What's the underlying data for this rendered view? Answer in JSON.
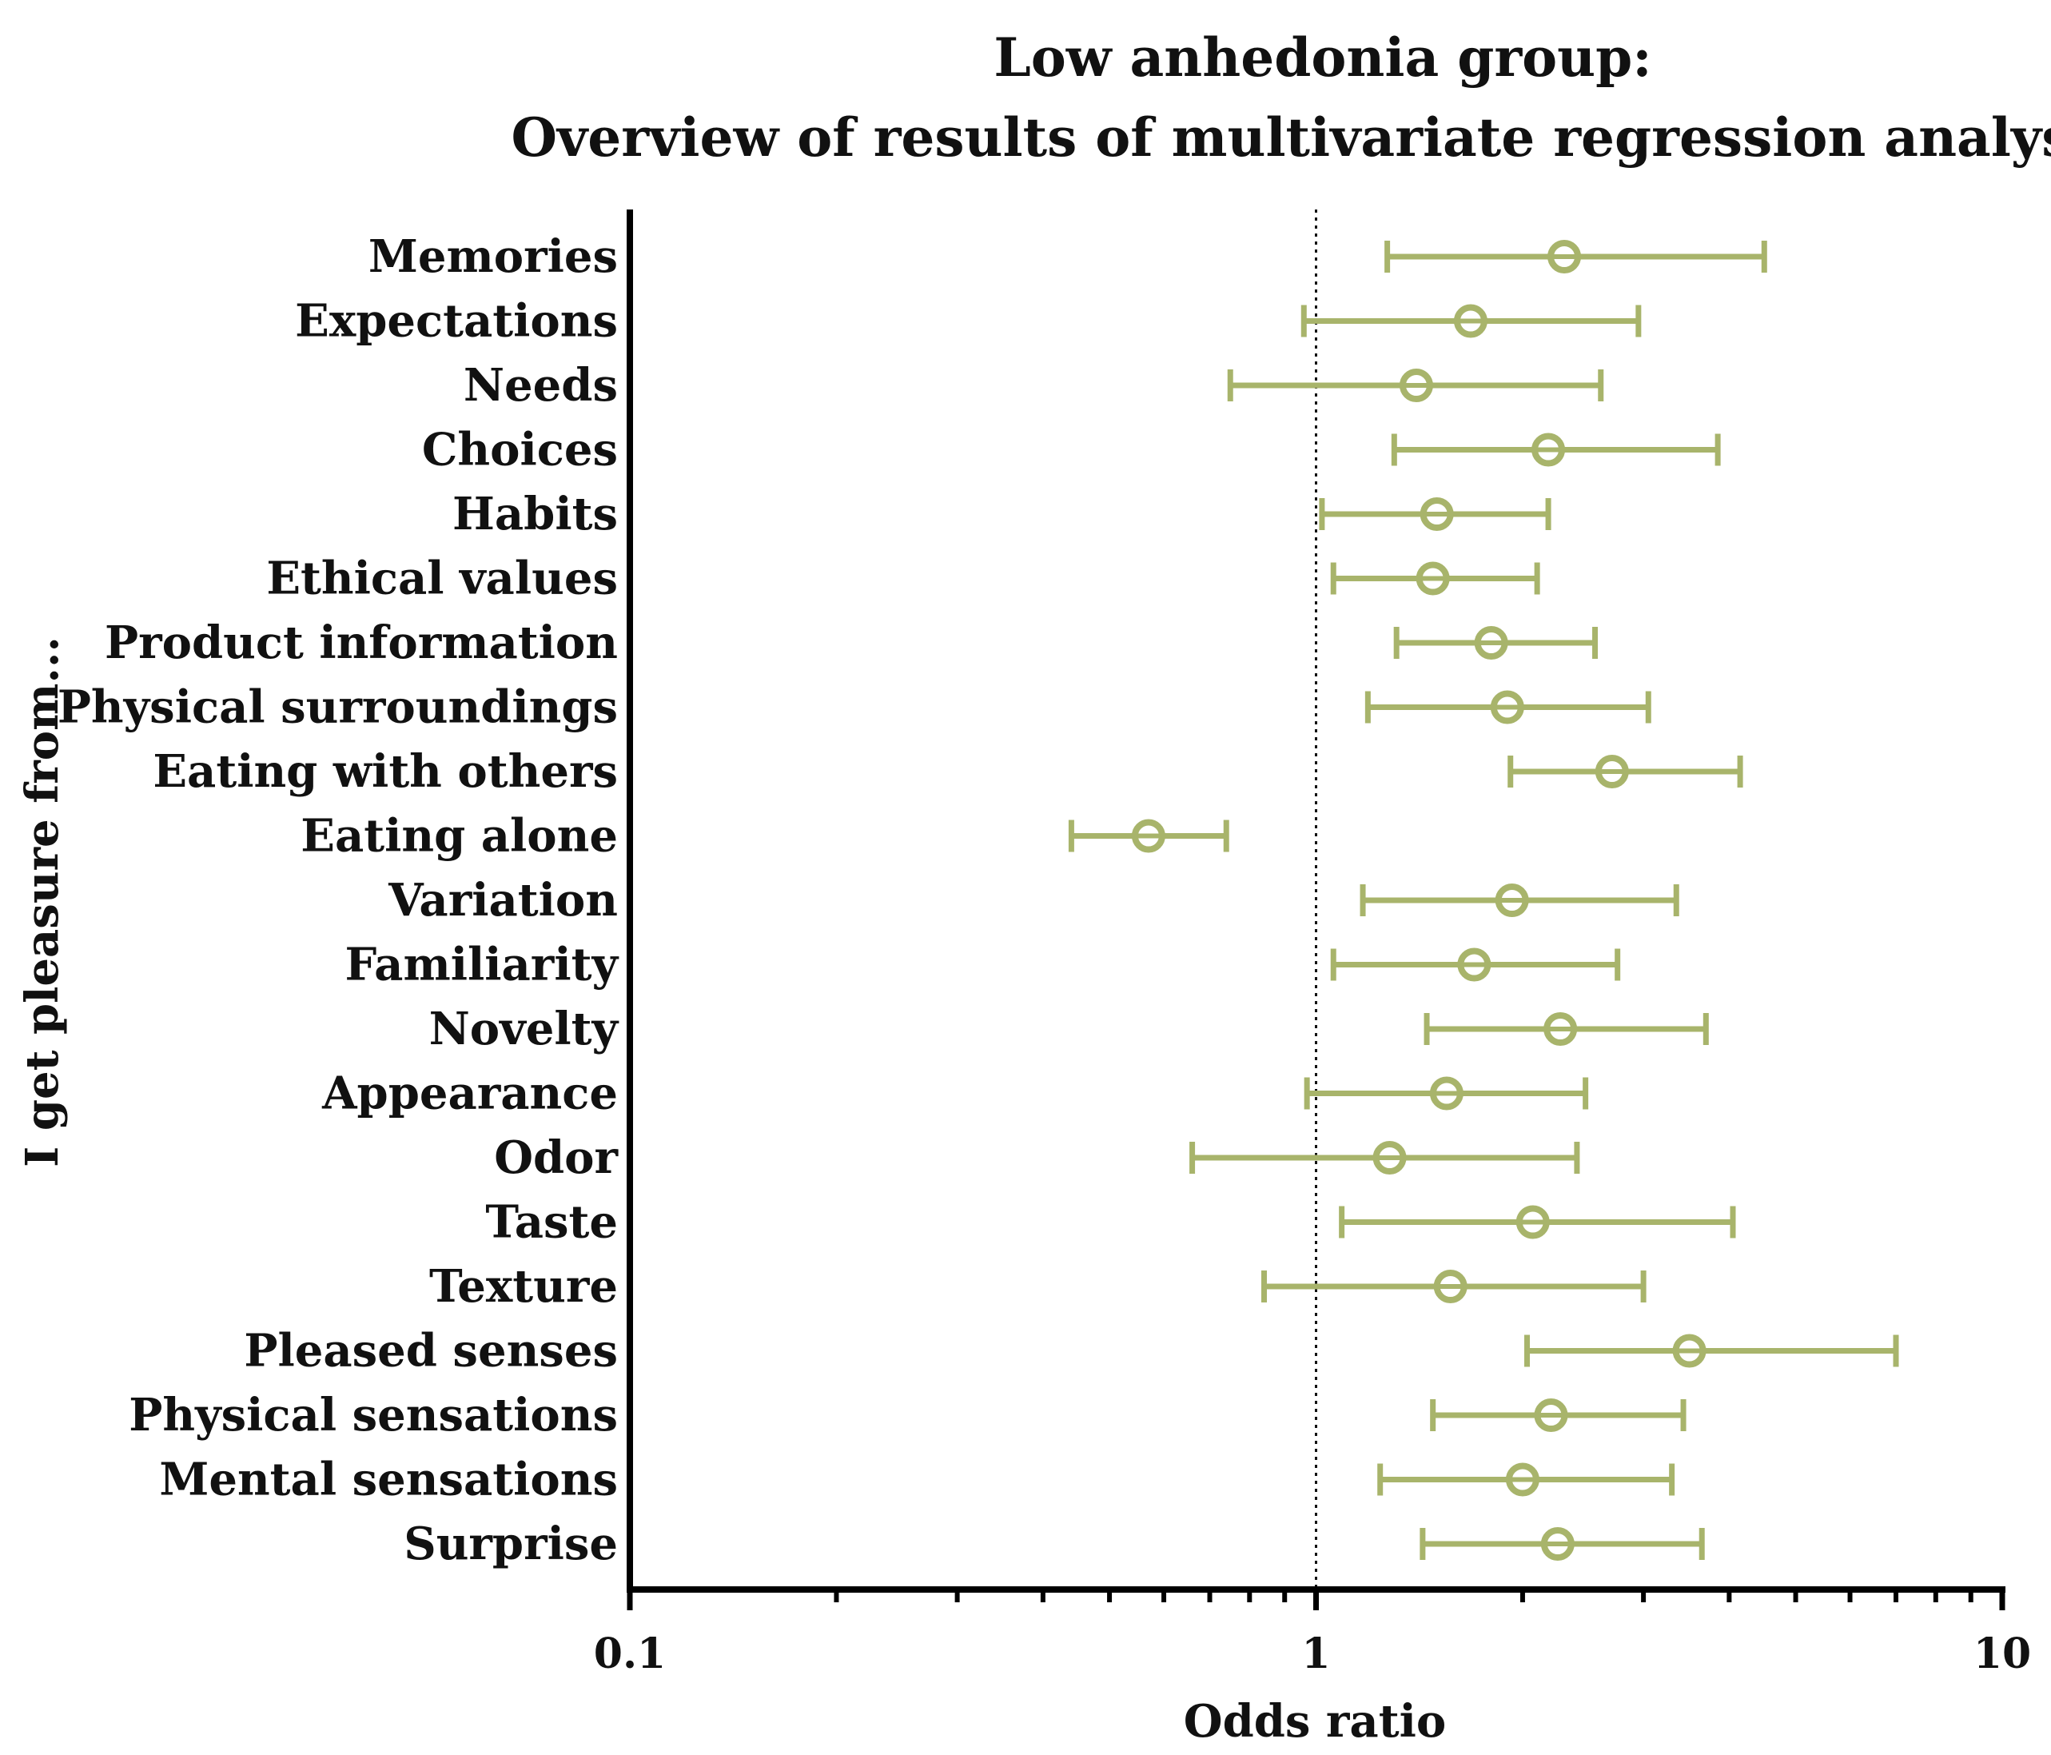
{
  "chart_data": {
    "type": "forest",
    "title": "Low anhedonia group:",
    "subtitle": "Overview of results of multivariate regression analyses",
    "xlabel": "Odds ratio",
    "ylabel": "I get pleasure from...",
    "xscale": "log",
    "xlim": [
      0.1,
      10
    ],
    "xticks": [
      "0.1",
      "1",
      "10"
    ],
    "reference_line": 1,
    "color": "#a8b46b",
    "categories": [
      "Memories",
      "Expectations",
      "Needs",
      "Choices",
      "Habits",
      "Ethical values",
      "Product information",
      "Physical surroundings",
      "Eating with others",
      "Eating alone",
      "Variation",
      "Familiarity",
      "Novelty",
      "Appearance",
      "Odor",
      "Taste",
      "Texture",
      "Pleased senses",
      "Physical sensations",
      "Mental sensations",
      "Surprise"
    ],
    "estimates": [
      2.3,
      1.68,
      1.4,
      2.18,
      1.5,
      1.48,
      1.8,
      1.9,
      2.7,
      0.57,
      1.93,
      1.7,
      2.27,
      1.55,
      1.28,
      2.07,
      1.57,
      3.5,
      2.2,
      2.0,
      2.25
    ],
    "lower": [
      1.27,
      0.96,
      0.75,
      1.3,
      1.02,
      1.06,
      1.31,
      1.19,
      1.92,
      0.44,
      1.17,
      1.06,
      1.45,
      0.97,
      0.66,
      1.09,
      0.84,
      2.03,
      1.48,
      1.24,
      1.43
    ],
    "upper": [
      4.5,
      2.95,
      2.6,
      3.85,
      2.18,
      2.1,
      2.55,
      3.05,
      4.15,
      0.74,
      3.35,
      2.75,
      3.7,
      2.47,
      2.4,
      4.05,
      3.0,
      7.0,
      3.43,
      3.3,
      3.65
    ]
  }
}
